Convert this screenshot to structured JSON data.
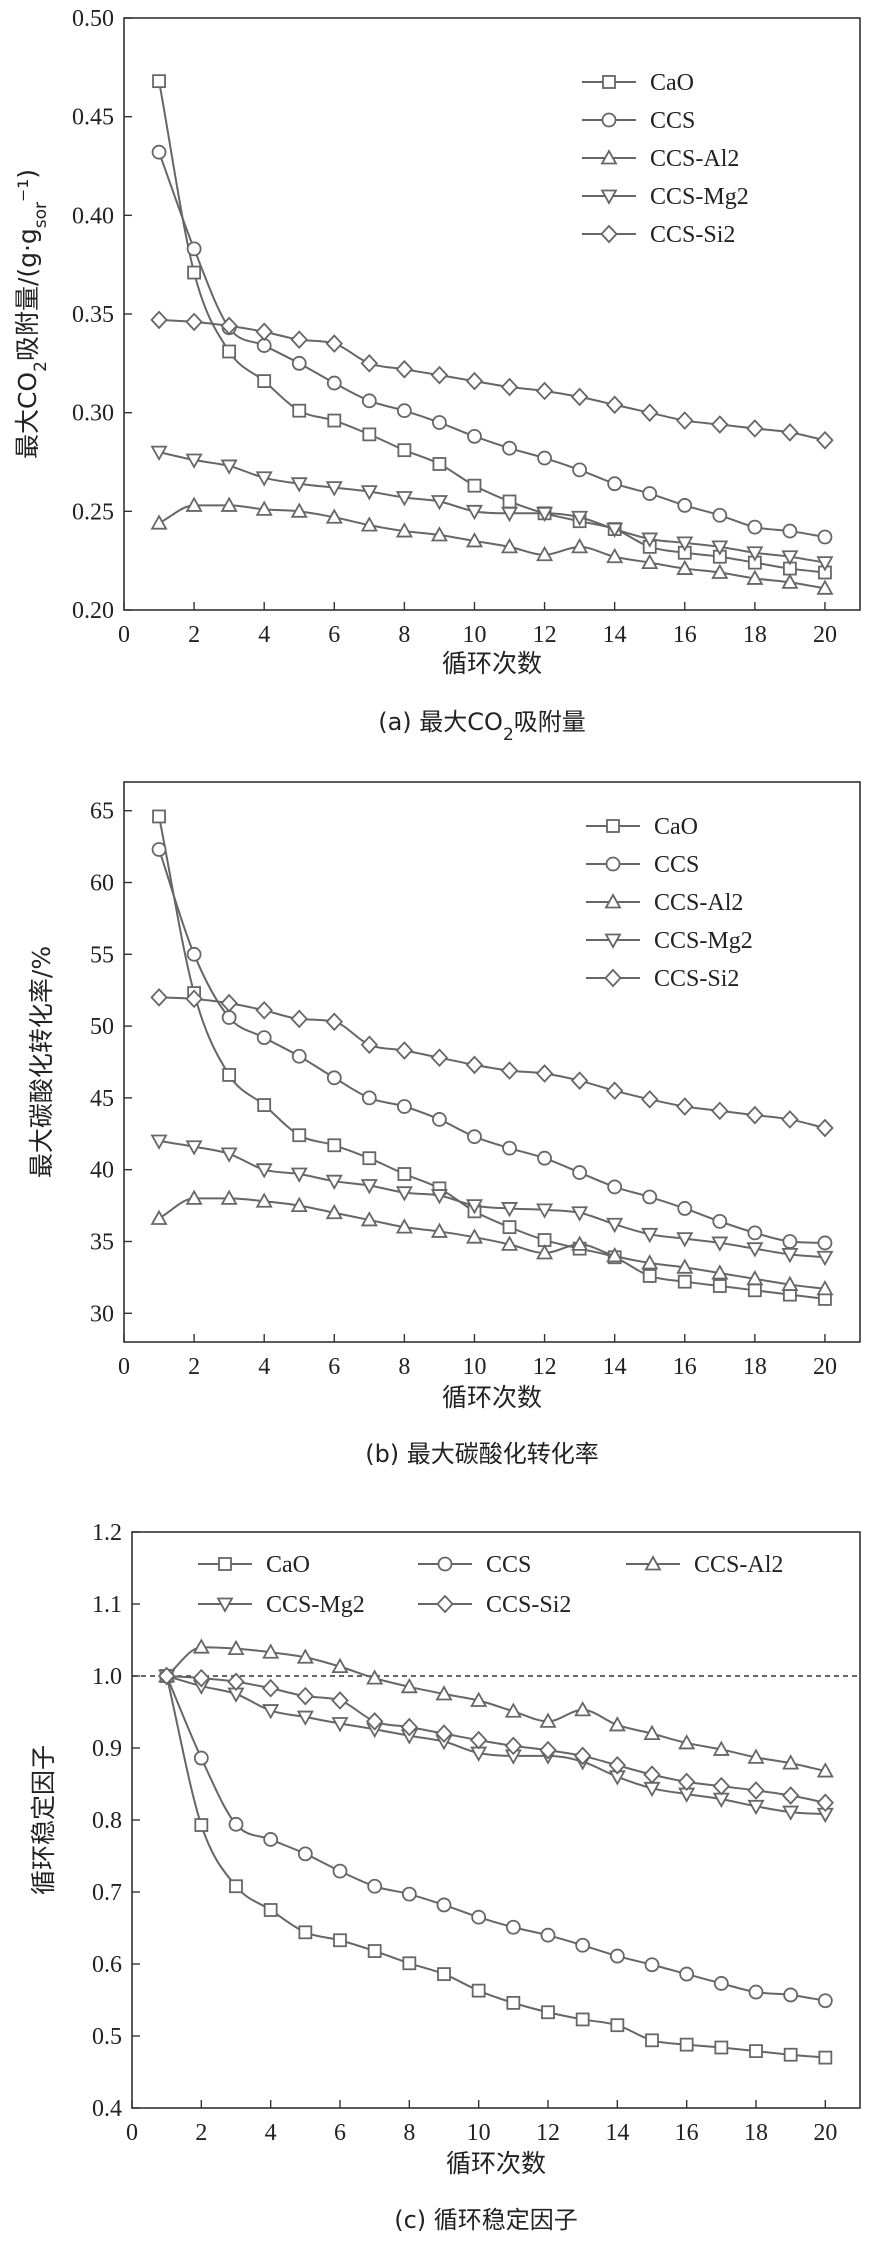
{
  "chart_data": [
    {
      "type": "line",
      "id": "a",
      "ylabel_parts": [
        "最大CO",
        "2",
        "吸附量/(g·g",
        "sor",
        "⁻¹)"
      ],
      "xlabel": "循环次数",
      "caption_parts": [
        "(a) 最大CO",
        "2",
        "吸附量"
      ],
      "xlim": [
        0,
        21
      ],
      "ylim": [
        0.2,
        0.5
      ],
      "xticks": [
        "0",
        "2",
        "4",
        "6",
        "8",
        "10",
        "12",
        "14",
        "16",
        "18",
        "20"
      ],
      "yticks": [
        "0.20",
        "0.25",
        "0.30",
        "0.35",
        "0.40",
        "0.45",
        "0.50"
      ],
      "legend_position": "top-right",
      "x": [
        1,
        2,
        3,
        4,
        5,
        6,
        7,
        8,
        9,
        10,
        11,
        12,
        13,
        14,
        15,
        16,
        17,
        18,
        19,
        20
      ],
      "series": [
        {
          "name": "CaO",
          "marker": "square",
          "values": [
            0.468,
            0.371,
            0.331,
            0.316,
            0.301,
            0.296,
            0.289,
            0.281,
            0.274,
            0.263,
            0.255,
            0.249,
            0.245,
            0.241,
            0.232,
            0.229,
            0.227,
            0.224,
            0.221,
            0.219
          ]
        },
        {
          "name": "CCS",
          "marker": "circle",
          "values": [
            0.432,
            0.383,
            0.343,
            0.334,
            0.325,
            0.315,
            0.306,
            0.301,
            0.295,
            0.288,
            0.282,
            0.277,
            0.271,
            0.264,
            0.259,
            0.253,
            0.248,
            0.242,
            0.24,
            0.237
          ]
        },
        {
          "name": "CCS-Al2",
          "marker": "triangle-up",
          "values": [
            0.244,
            0.253,
            0.253,
            0.251,
            0.25,
            0.247,
            0.243,
            0.24,
            0.238,
            0.235,
            0.232,
            0.228,
            0.232,
            0.227,
            0.224,
            0.221,
            0.219,
            0.216,
            0.214,
            0.211
          ]
        },
        {
          "name": "CCS-Mg2",
          "marker": "triangle-down",
          "values": [
            0.28,
            0.276,
            0.273,
            0.267,
            0.264,
            0.262,
            0.26,
            0.257,
            0.255,
            0.25,
            0.249,
            0.249,
            0.247,
            0.241,
            0.236,
            0.234,
            0.232,
            0.229,
            0.227,
            0.224
          ]
        },
        {
          "name": "CCS-Si2",
          "marker": "diamond",
          "values": [
            0.347,
            0.346,
            0.344,
            0.341,
            0.337,
            0.335,
            0.325,
            0.322,
            0.319,
            0.316,
            0.313,
            0.311,
            0.308,
            0.304,
            0.3,
            0.296,
            0.294,
            0.292,
            0.29,
            0.286
          ]
        }
      ]
    },
    {
      "type": "line",
      "id": "b",
      "ylabel": "最大碳酸化转化率/%",
      "xlabel": "循环次数",
      "caption": "(b) 最大碳酸化转化率",
      "xlim": [
        0,
        21
      ],
      "ylim": [
        28,
        67
      ],
      "xticks": [
        "0",
        "2",
        "4",
        "6",
        "8",
        "10",
        "12",
        "14",
        "16",
        "18",
        "20"
      ],
      "yticks": [
        "30",
        "35",
        "40",
        "45",
        "50",
        "55",
        "60",
        "65"
      ],
      "legend_position": "top-right",
      "x": [
        1,
        2,
        3,
        4,
        5,
        6,
        7,
        8,
        9,
        10,
        11,
        12,
        13,
        14,
        15,
        16,
        17,
        18,
        19,
        20
      ],
      "series": [
        {
          "name": "CaO",
          "marker": "square",
          "values": [
            64.6,
            52.3,
            46.6,
            44.5,
            42.4,
            41.7,
            40.8,
            39.7,
            38.7,
            37.1,
            36.0,
            35.1,
            34.5,
            33.9,
            32.6,
            32.2,
            31.9,
            31.6,
            31.3,
            31.0
          ]
        },
        {
          "name": "CCS",
          "marker": "circle",
          "values": [
            62.3,
            55.0,
            50.6,
            49.2,
            47.9,
            46.4,
            45.0,
            44.4,
            43.5,
            42.3,
            41.5,
            40.8,
            39.8,
            38.8,
            38.1,
            37.3,
            36.4,
            35.6,
            35.0,
            34.9
          ]
        },
        {
          "name": "CCS-Al2",
          "marker": "triangle-up",
          "values": [
            36.6,
            38.0,
            38.0,
            37.8,
            37.5,
            37.0,
            36.5,
            36.0,
            35.7,
            35.3,
            34.8,
            34.2,
            34.8,
            34.0,
            33.5,
            33.2,
            32.8,
            32.4,
            32.0,
            31.7
          ]
        },
        {
          "name": "CCS-Mg2",
          "marker": "triangle-down",
          "values": [
            42.0,
            41.6,
            41.1,
            40.0,
            39.7,
            39.2,
            38.9,
            38.4,
            38.2,
            37.5,
            37.3,
            37.2,
            37.0,
            36.2,
            35.5,
            35.2,
            34.9,
            34.5,
            34.1,
            33.9
          ]
        },
        {
          "name": "CCS-Si2",
          "marker": "diamond",
          "values": [
            52.0,
            51.9,
            51.6,
            51.1,
            50.5,
            50.3,
            48.7,
            48.3,
            47.8,
            47.3,
            46.9,
            46.7,
            46.2,
            45.5,
            44.9,
            44.4,
            44.1,
            43.8,
            43.5,
            42.9
          ]
        }
      ]
    },
    {
      "type": "line",
      "id": "c",
      "ylabel": "循环稳定因子",
      "xlabel": "循环次数",
      "caption": "(c) 循环稳定因子",
      "xlim": [
        0,
        21
      ],
      "ylim": [
        0.4,
        1.2
      ],
      "xticks": [
        "0",
        "2",
        "4",
        "6",
        "8",
        "10",
        "12",
        "14",
        "16",
        "18",
        "20"
      ],
      "yticks": [
        "0.4",
        "0.5",
        "0.6",
        "0.7",
        "0.8",
        "0.9",
        "1.0",
        "1.1",
        "1.2"
      ],
      "legend_position": "top",
      "reference_line": 1.0,
      "x": [
        1,
        2,
        3,
        4,
        5,
        6,
        7,
        8,
        9,
        10,
        11,
        12,
        13,
        14,
        15,
        16,
        17,
        18,
        19,
        20
      ],
      "series": [
        {
          "name": "CaO",
          "marker": "square",
          "values": [
            1.0,
            0.793,
            0.708,
            0.675,
            0.644,
            0.633,
            0.618,
            0.601,
            0.586,
            0.563,
            0.546,
            0.533,
            0.523,
            0.515,
            0.494,
            0.488,
            0.484,
            0.479,
            0.474,
            0.47
          ]
        },
        {
          "name": "CCS",
          "marker": "circle",
          "values": [
            1.0,
            0.886,
            0.794,
            0.773,
            0.753,
            0.729,
            0.708,
            0.697,
            0.682,
            0.665,
            0.651,
            0.64,
            0.626,
            0.611,
            0.599,
            0.586,
            0.573,
            0.561,
            0.557,
            0.549
          ]
        },
        {
          "name": "CCS-Al2",
          "marker": "triangle-up",
          "values": [
            1.0,
            1.04,
            1.038,
            1.033,
            1.026,
            1.013,
            0.997,
            0.985,
            0.975,
            0.966,
            0.951,
            0.937,
            0.953,
            0.932,
            0.92,
            0.907,
            0.898,
            0.887,
            0.879,
            0.868
          ]
        },
        {
          "name": "CCS-Mg2",
          "marker": "triangle-down",
          "values": [
            1.0,
            0.986,
            0.975,
            0.952,
            0.943,
            0.934,
            0.926,
            0.917,
            0.909,
            0.893,
            0.889,
            0.889,
            0.881,
            0.86,
            0.844,
            0.836,
            0.829,
            0.819,
            0.811,
            0.808
          ]
        },
        {
          "name": "CCS-Si2",
          "marker": "diamond",
          "values": [
            1.0,
            0.997,
            0.992,
            0.983,
            0.972,
            0.966,
            0.937,
            0.929,
            0.92,
            0.911,
            0.903,
            0.897,
            0.889,
            0.876,
            0.863,
            0.853,
            0.847,
            0.841,
            0.834,
            0.824
          ]
        }
      ]
    }
  ]
}
